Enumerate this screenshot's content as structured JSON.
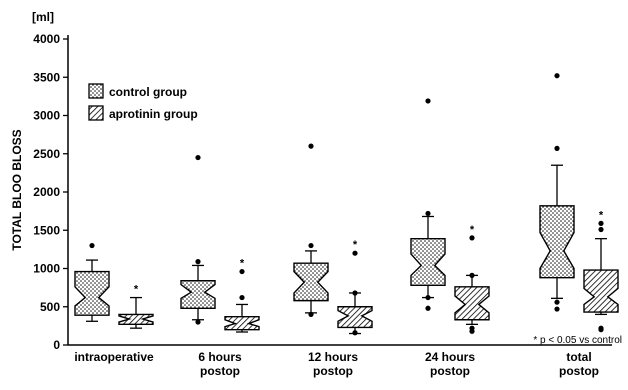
{
  "chart_data": {
    "type": "box",
    "ylabel": "TOTAL BLOO BLOSS",
    "unit": "[ml]",
    "ylim": [
      0,
      4000
    ],
    "yticks": [
      0,
      500,
      1000,
      1500,
      2000,
      2500,
      3000,
      3500,
      4000
    ],
    "legend_position": "top-left",
    "categories": [
      [
        "intraoperative"
      ],
      [
        "6 hours",
        "postop"
      ],
      [
        "12 hours",
        "postop"
      ],
      [
        "24 hours",
        "postop"
      ],
      [
        "total",
        "postop"
      ]
    ],
    "series": [
      {
        "name": "control group",
        "pattern": "dots",
        "boxes": [
          {
            "wlo": 310,
            "q1": 390,
            "med": 620,
            "q3": 960,
            "whi": 1110,
            "notch_lo": 510,
            "notch_hi": 760,
            "outliers": [
              1300
            ],
            "sig": false
          },
          {
            "wlo": 330,
            "q1": 480,
            "med": 690,
            "q3": 840,
            "whi": 1040,
            "notch_lo": 610,
            "notch_hi": 790,
            "outliers": [
              2450,
              1090,
              300
            ],
            "sig": false
          },
          {
            "wlo": 420,
            "q1": 580,
            "med": 820,
            "q3": 1070,
            "whi": 1230,
            "notch_lo": 680,
            "notch_hi": 960,
            "outliers": [
              2600,
              1300,
              400
            ],
            "sig": false
          },
          {
            "wlo": 620,
            "q1": 780,
            "med": 1040,
            "q3": 1390,
            "whi": 1680,
            "notch_lo": 910,
            "notch_hi": 1190,
            "outliers": [
              3190,
              1720,
              620,
              480
            ],
            "sig": false
          },
          {
            "wlo": 610,
            "q1": 880,
            "med": 1230,
            "q3": 1820,
            "whi": 2350,
            "notch_lo": 1000,
            "notch_hi": 1470,
            "outliers": [
              3520,
              2570,
              560,
              470
            ],
            "sig": false
          }
        ]
      },
      {
        "name": "aprotinin group",
        "pattern": "hatch",
        "boxes": [
          {
            "wlo": 220,
            "q1": 270,
            "med": 340,
            "q3": 400,
            "whi": 620,
            "notch_lo": 300,
            "notch_hi": 380,
            "outliers": [],
            "sig": true
          },
          {
            "wlo": 170,
            "q1": 200,
            "med": 280,
            "q3": 370,
            "whi": 530,
            "notch_lo": 240,
            "notch_hi": 330,
            "outliers": [
              960,
              620
            ],
            "sig": true
          },
          {
            "wlo": 150,
            "q1": 230,
            "med": 380,
            "q3": 500,
            "whi": 680,
            "notch_lo": 310,
            "notch_hi": 450,
            "outliers": [
              1200,
              680,
              160
            ],
            "sig": true
          },
          {
            "wlo": 270,
            "q1": 330,
            "med": 530,
            "q3": 760,
            "whi": 910,
            "notch_lo": 420,
            "notch_hi": 640,
            "outliers": [
              1400,
              910,
              220,
              180
            ],
            "sig": true
          },
          {
            "wlo": 400,
            "q1": 430,
            "med": 630,
            "q3": 980,
            "whi": 1390,
            "notch_lo": 530,
            "notch_hi": 740,
            "outliers": [
              1590,
              1510,
              220,
              200
            ],
            "sig": true
          }
        ]
      }
    ],
    "annotation": "* p < 0.05 vs control"
  },
  "legend": {
    "control": "control group",
    "aprotinin": "aprotinin group"
  }
}
